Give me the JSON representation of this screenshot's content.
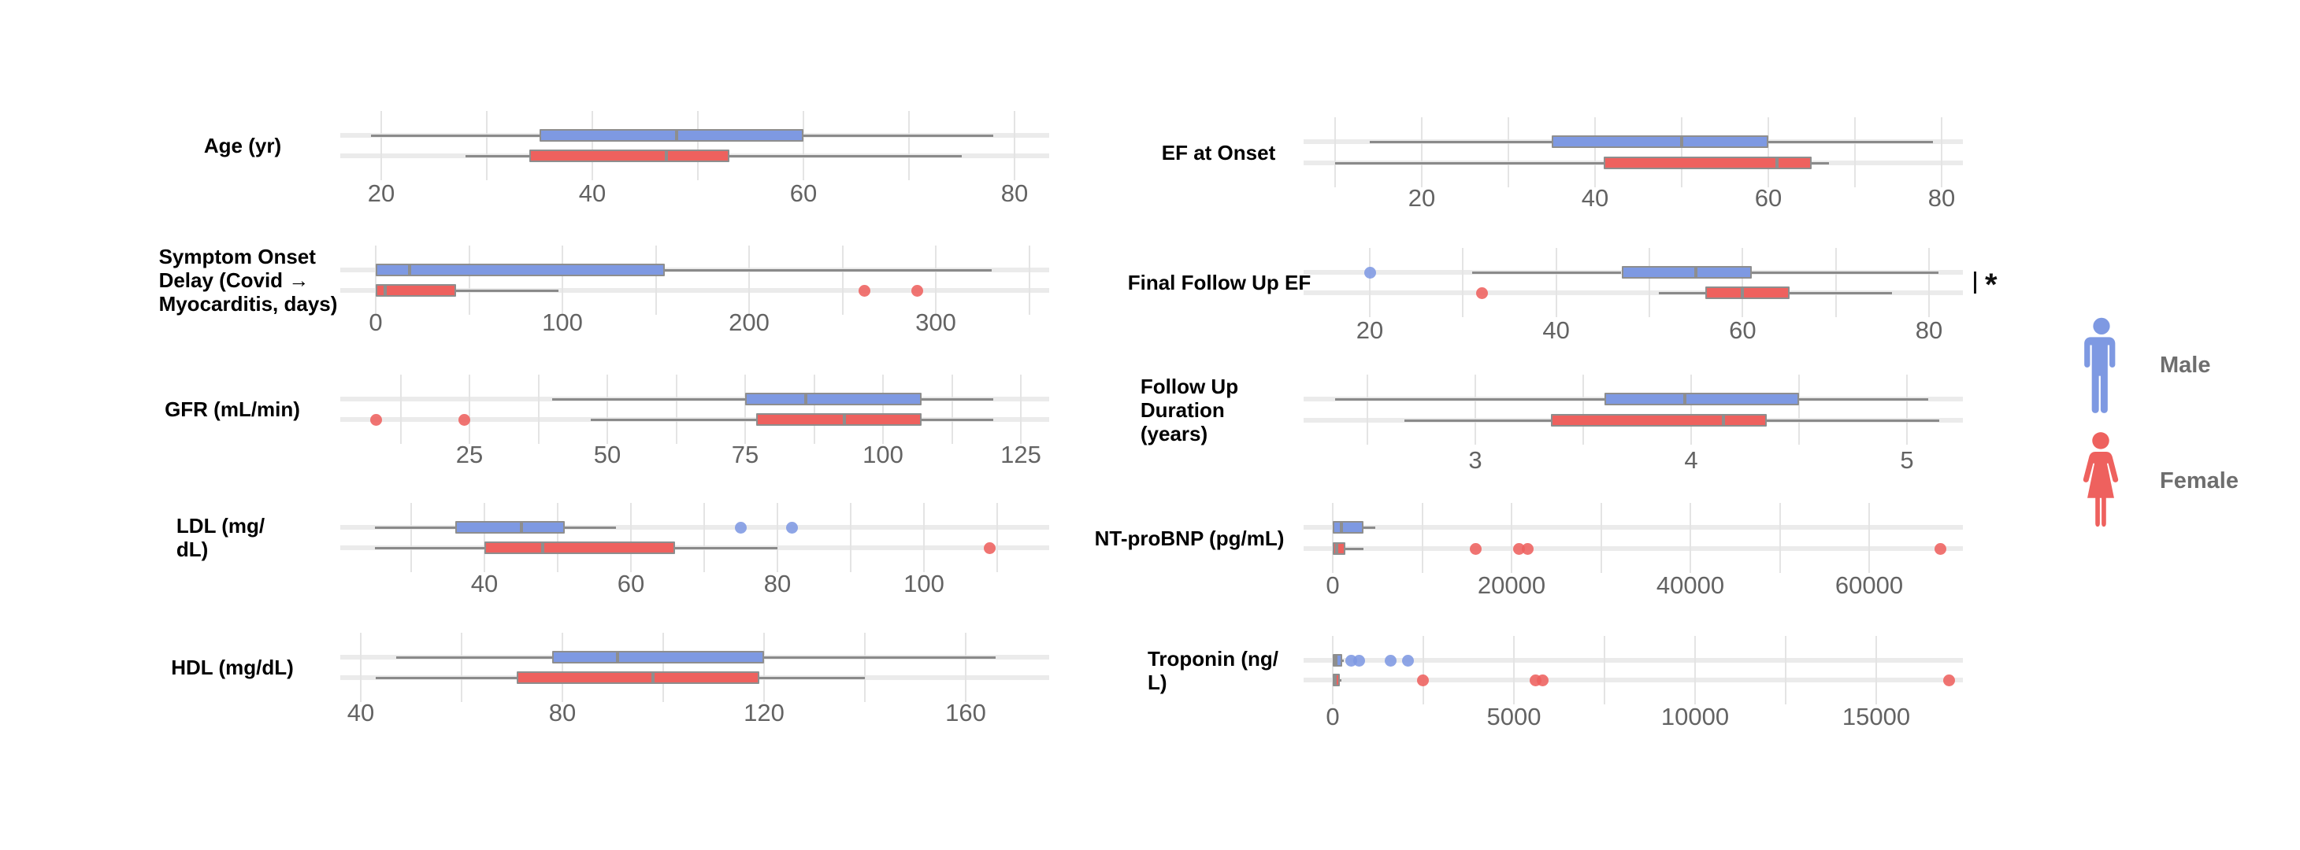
{
  "figure": {
    "background": "#ffffff"
  },
  "colors": {
    "male": "#7e99e2",
    "female": "#ee615e",
    "box_border": "#8e8e8e",
    "whisker": "#8a8a8a",
    "median": "#8e8e8e",
    "gridline": "#e4e4e4",
    "row_band": "#ebebeb",
    "tick_text": "#636363",
    "label_text": "#000000",
    "legend_text": "#6e6e6e",
    "significance": "#111111"
  },
  "legend": {
    "items": [
      {
        "label": "Male",
        "icon": "male-person-icon",
        "color": "#7e99e2"
      },
      {
        "label": "Female",
        "icon": "female-person-icon",
        "color": "#ee615e"
      }
    ]
  },
  "chart_data": [
    {
      "type": "boxplot",
      "orientation": "horizontal",
      "title": "Age (yr)",
      "title_lines": [
        "Age (yr)"
      ],
      "axis": {
        "ticks": [
          20,
          40,
          60,
          80
        ],
        "minor_step": 10,
        "xlim": [
          16,
          83
        ]
      },
      "series": [
        {
          "name": "Male",
          "min": 19,
          "q1": 35,
          "median": 48,
          "q3": 60,
          "max": 78,
          "outliers": []
        },
        {
          "name": "Female",
          "min": 28,
          "q1": 34,
          "median": 47,
          "q3": 53,
          "max": 75,
          "outliers": []
        }
      ],
      "significance": null
    },
    {
      "type": "boxplot",
      "orientation": "horizontal",
      "title": "Symptom Onset Delay (Covid → Myocarditis, days)",
      "title_lines": [
        "Symptom Onset",
        "Delay (Covid →",
        "Myocarditis, days)"
      ],
      "axis": {
        "ticks": [
          0,
          100,
          200,
          300
        ],
        "minor_step": 50,
        "xlim": [
          -10,
          345
        ]
      },
      "series": [
        {
          "name": "Male",
          "min": 0,
          "q1": 0,
          "median": 18,
          "q3": 155,
          "max": 330,
          "outliers": []
        },
        {
          "name": "Female",
          "min": 0,
          "q1": 0,
          "median": 5,
          "q3": 43,
          "max": 98,
          "outliers": [
            262,
            290
          ]
        }
      ],
      "significance": null
    },
    {
      "type": "boxplot",
      "orientation": "horizontal",
      "title": "GFR (mL/min)",
      "title_lines": [
        "GFR (mL/min)"
      ],
      "axis": {
        "ticks": [
          25,
          50,
          75,
          100,
          125
        ],
        "minor_step": 12.5,
        "xlim": [
          2,
          130
        ]
      },
      "series": [
        {
          "name": "Male",
          "min": 40,
          "q1": 75,
          "median": 86,
          "q3": 107,
          "max": 120,
          "outliers": []
        },
        {
          "name": "Female",
          "min": 47,
          "q1": 77,
          "median": 93,
          "q3": 107,
          "max": 120,
          "outliers": [
            8,
            24
          ]
        }
      ],
      "significance": null
    },
    {
      "type": "boxplot",
      "orientation": "horizontal",
      "title": "LDL (mg/dL)",
      "title_lines": [
        "LDL (mg/",
        "dL)"
      ],
      "axis": {
        "ticks": [
          40,
          60,
          80,
          100
        ],
        "minor_step": 10,
        "xlim": [
          21,
          113
        ]
      },
      "series": [
        {
          "name": "Male",
          "min": 25,
          "q1": 36,
          "median": 45,
          "q3": 51,
          "max": 58,
          "outliers": [
            75,
            82
          ]
        },
        {
          "name": "Female",
          "min": 25,
          "q1": 40,
          "median": 48,
          "q3": 66,
          "max": 80,
          "outliers": [
            109
          ]
        }
      ],
      "significance": null
    },
    {
      "type": "boxplot",
      "orientation": "horizontal",
      "title": "HDL (mg/dL)",
      "title_lines": [
        "HDL (mg/dL)"
      ],
      "axis": {
        "ticks": [
          40,
          80,
          120,
          160
        ],
        "minor_step": 20,
        "xlim": [
          37,
          173
        ]
      },
      "series": [
        {
          "name": "Male",
          "min": 47,
          "q1": 78,
          "median": 91,
          "q3": 120,
          "max": 166,
          "outliers": []
        },
        {
          "name": "Female",
          "min": 43,
          "q1": 71,
          "median": 98,
          "q3": 119,
          "max": 140,
          "outliers": []
        }
      ],
      "significance": null
    },
    {
      "type": "boxplot",
      "orientation": "horizontal",
      "title": "EF at Onset",
      "title_lines": [
        "EF at Onset"
      ],
      "axis": {
        "ticks": [
          20,
          40,
          60,
          80
        ],
        "minor_step": 10,
        "xlim": [
          7,
          84
        ]
      },
      "series": [
        {
          "name": "Male",
          "min": 14,
          "q1": 35,
          "median": 50,
          "q3": 60,
          "max": 79,
          "outliers": []
        },
        {
          "name": "Female",
          "min": 10,
          "q1": 41,
          "median": 61,
          "q3": 65,
          "max": 67,
          "outliers": []
        }
      ],
      "significance": null
    },
    {
      "type": "boxplot",
      "orientation": "horizontal",
      "title": "Final Follow Up EF",
      "title_lines": [
        "Final Follow Up EF"
      ],
      "axis": {
        "ticks": [
          20,
          40,
          60,
          80
        ],
        "minor_step": 10,
        "xlim": [
          16,
          84
        ]
      },
      "series": [
        {
          "name": "Male",
          "min": 31,
          "q1": 47,
          "median": 55,
          "q3": 61,
          "max": 81,
          "outliers": [
            20
          ]
        },
        {
          "name": "Female",
          "min": 51,
          "q1": 56,
          "median": 60,
          "q3": 65,
          "max": 76,
          "outliers": [
            32
          ]
        }
      ],
      "significance": "*"
    },
    {
      "type": "boxplot",
      "orientation": "horizontal",
      "title": "Follow Up Duration (years)",
      "title_lines": [
        "Follow Up",
        "Duration",
        "(years)"
      ],
      "axis": {
        "ticks": [
          3,
          4,
          5
        ],
        "minor_step": 0.5,
        "xlim": [
          2.2,
          5.3
        ]
      },
      "series": [
        {
          "name": "Male",
          "min": 2.35,
          "q1": 3.6,
          "median": 3.97,
          "q3": 4.5,
          "max": 5.1,
          "outliers": []
        },
        {
          "name": "Female",
          "min": 2.67,
          "q1": 3.35,
          "median": 4.15,
          "q3": 4.35,
          "max": 5.15,
          "outliers": []
        }
      ],
      "significance": null
    },
    {
      "type": "boxplot",
      "orientation": "horizontal",
      "title": "NT-proBNP (pg/mL)",
      "title_lines": [
        "NT-proBNP (pg/mL)"
      ],
      "axis": {
        "ticks": [
          0,
          20000,
          40000,
          60000
        ],
        "minor_step": 10000,
        "xlim": [
          -1500,
          70500
        ]
      },
      "series": [
        {
          "name": "Male",
          "min": 0,
          "q1": 0,
          "median": 1000,
          "q3": 3400,
          "max": 4800,
          "outliers": []
        },
        {
          "name": "Female",
          "min": 0,
          "q1": 0,
          "median": 400,
          "q3": 1400,
          "max": 3400,
          "outliers": [
            16000,
            20800,
            21800,
            68000
          ]
        }
      ],
      "significance": null
    },
    {
      "type": "boxplot",
      "orientation": "horizontal",
      "title": "Troponin (ng/L)",
      "title_lines": [
        "Troponin (ng/",
        "L)"
      ],
      "axis": {
        "ticks": [
          0,
          5000,
          10000,
          15000
        ],
        "minor_step": 2500,
        "xlim": [
          -300,
          17600
        ]
      },
      "series": [
        {
          "name": "Male",
          "min": 0,
          "q1": 0,
          "median": 80,
          "q3": 250,
          "max": 300,
          "outliers": [
            500,
            720,
            1600,
            2080
          ]
        },
        {
          "name": "Female",
          "min": 0,
          "q1": 0,
          "median": 60,
          "q3": 200,
          "max": 250,
          "outliers": [
            2480,
            5600,
            5800,
            17000
          ]
        }
      ],
      "significance": null
    }
  ]
}
